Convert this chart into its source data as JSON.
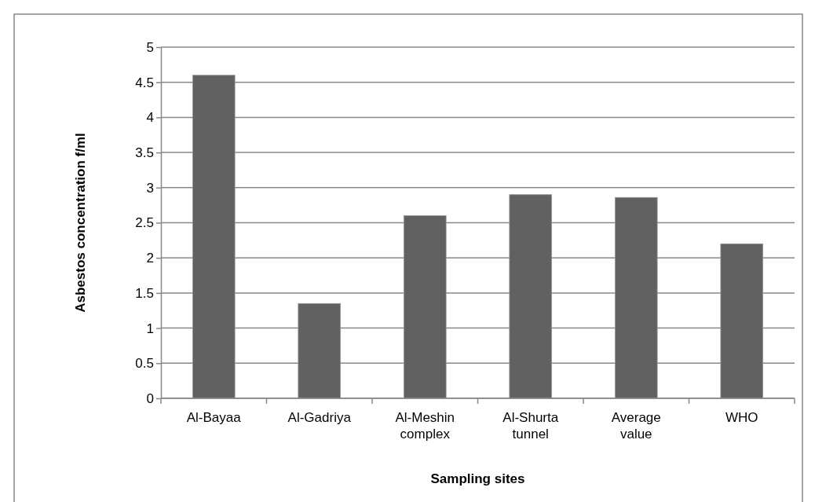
{
  "chart_data": {
    "type": "bar",
    "xlabel": "Sampling sites",
    "ylabel": "Asbestos concentration f/ml",
    "categories": [
      "Al-Bayaa",
      "Al-Gadriya",
      "Al-Meshin complex",
      "Al-Shurta tunnel",
      "Average value",
      "WHO"
    ],
    "values": [
      4.6,
      1.35,
      2.6,
      2.9,
      2.86,
      2.2
    ],
    "color": "#616161",
    "ylim": [
      0,
      5
    ],
    "yticks": [
      0,
      0.5,
      1,
      1.5,
      2,
      2.5,
      3,
      3.5,
      4,
      4.5,
      5
    ],
    "grid": "y"
  }
}
